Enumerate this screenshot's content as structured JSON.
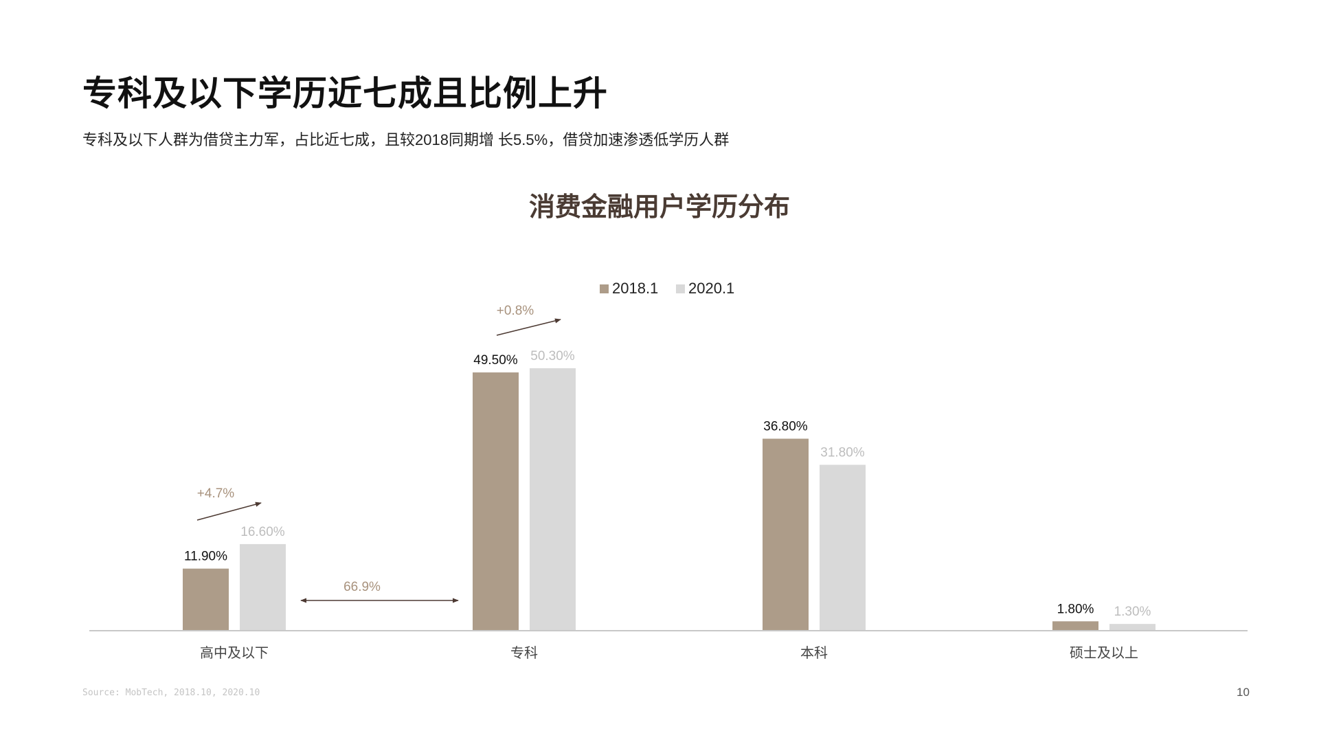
{
  "page": {
    "title": "专科及以下学历近七成且比例上升",
    "subtitle": "专科及以下人群为借贷主力军，占比近七成，且较2018同期增 长5.5%，借贷加速渗透低学历人群",
    "source": "Source: MobTech, 2018.10, 2020.10",
    "page_number": "10"
  },
  "colors": {
    "series_2018": "#ad9c89",
    "series_2020": "#d9d9d9",
    "label_2018": "#111111",
    "label_2020": "#bdbdbd",
    "annotation_text": "#a8927d",
    "arrow": "#4d3a33",
    "axis": "#c8c8c8"
  },
  "chart_data": {
    "type": "bar",
    "title": "消费金融用户学历分布",
    "categories": [
      "高中及以下",
      "专科",
      "本科",
      "硕士及以上"
    ],
    "series": [
      {
        "name": "2018.1",
        "values": [
          11.9,
          49.5,
          36.8,
          1.8
        ],
        "labels": [
          "11.90%",
          "49.50%",
          "36.80%",
          "1.80%"
        ]
      },
      {
        "name": "2020.1",
        "values": [
          16.6,
          50.3,
          31.8,
          1.3
        ],
        "labels": [
          "16.60%",
          "50.30%",
          "31.80%",
          "1.30%"
        ]
      }
    ],
    "ylim": [
      0,
      50.3
    ],
    "legend": "top-center",
    "grid": false,
    "annotations": [
      {
        "category": "高中及以下",
        "text": "+4.7%",
        "kind": "increase-arrow"
      },
      {
        "category": "专科",
        "text": "+0.8%",
        "kind": "increase-arrow"
      },
      {
        "between": [
          "高中及以下",
          "专科"
        ],
        "text": "66.9%",
        "kind": "double-arrow"
      }
    ]
  }
}
